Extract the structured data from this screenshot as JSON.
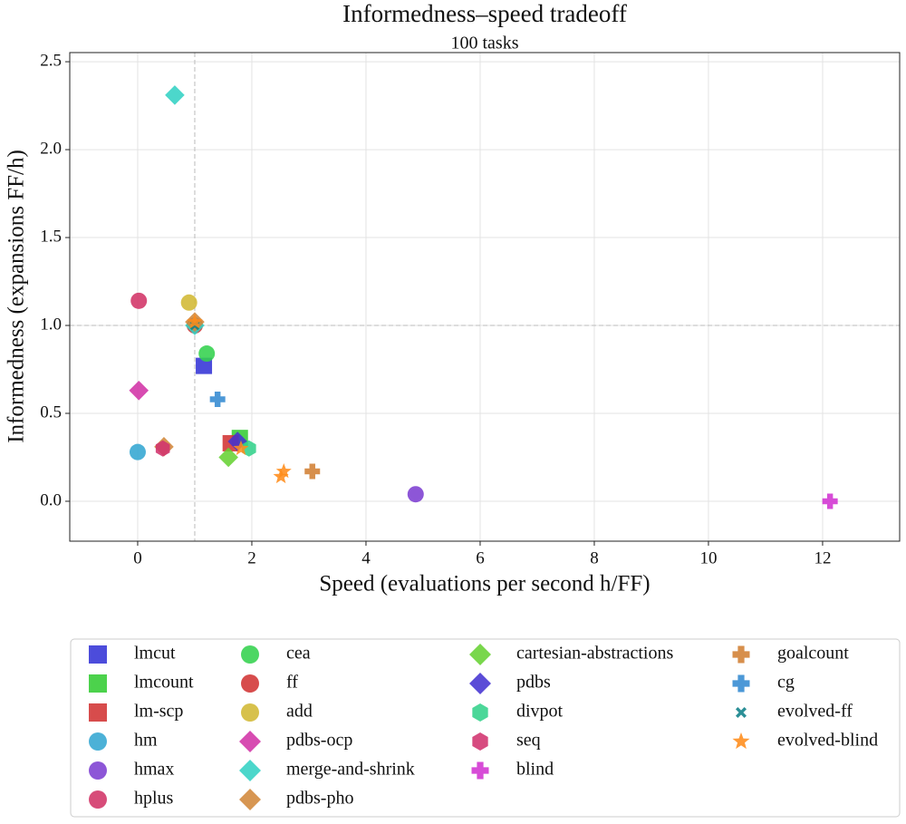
{
  "chart_data": {
    "type": "scatter",
    "title": "Informedness–speed tradeoff",
    "subtitle": "100 tasks",
    "x_label": "Speed (evaluations per second h/FF)",
    "y_label": "Informedness (expansions FF/h)",
    "xlim": [
      -1.19,
      13.35
    ],
    "ylim": [
      -0.227,
      2.552
    ],
    "xticks": [
      0,
      2,
      4,
      6,
      8,
      10,
      12
    ],
    "yticks": [
      {
        "value": 0,
        "label": "0.0"
      },
      {
        "value": 0.5,
        "label": "0.5"
      },
      {
        "value": 1,
        "label": "1.0"
      },
      {
        "value": 1.5,
        "label": "1.5"
      },
      {
        "value": 2,
        "label": "2.0"
      },
      {
        "value": 2.5,
        "label": "2.5"
      }
    ],
    "grid": true,
    "reference_lines": {
      "x": 1,
      "y": 1
    },
    "legend": "bottom",
    "series": [
      {
        "name": "lmcut",
        "color": "#3333d6",
        "marker": "square",
        "x": [
          1.16
        ],
        "y": [
          0.77
        ]
      },
      {
        "name": "lmcount",
        "color": "#33cc33",
        "marker": "square",
        "x": [
          1.79
        ],
        "y": [
          0.36
        ]
      },
      {
        "name": "lm-scp",
        "color": "#d13333",
        "marker": "square",
        "x": [
          1.63
        ],
        "y": [
          0.33
        ]
      },
      {
        "name": "hm",
        "color": "#33a6d1",
        "marker": "circle",
        "x": [
          0.0
        ],
        "y": [
          0.28
        ]
      },
      {
        "name": "hmax",
        "color": "#7d3fd1",
        "marker": "circle",
        "x": [
          4.87
        ],
        "y": [
          0.04
        ]
      },
      {
        "name": "hplus",
        "color": "#d13366",
        "marker": "circle",
        "x": [
          0.02
        ],
        "y": [
          1.14
        ]
      },
      {
        "name": "cea",
        "color": "#33d14d",
        "marker": "circle",
        "x": [
          1.21
        ],
        "y": [
          0.84
        ]
      },
      {
        "name": "ff",
        "color": "#d13333",
        "marker": "circle",
        "x": [
          1.0
        ],
        "y": [
          1.0
        ]
      },
      {
        "name": "add",
        "color": "#d1b833",
        "marker": "circle",
        "x": [
          0.9
        ],
        "y": [
          1.13
        ]
      },
      {
        "name": "pdbs-ocp",
        "color": "#d133a6",
        "marker": "diamond",
        "x": [
          0.02
        ],
        "y": [
          0.63
        ]
      },
      {
        "name": "merge-and-shrink",
        "color": "#33d1c4",
        "marker": "diamond",
        "x": [
          0.65,
          1.0
        ],
        "y": [
          2.31,
          1.0
        ]
      },
      {
        "name": "pdbs-pho",
        "color": "#d1873a",
        "marker": "diamond",
        "x": [
          0.46,
          1.0
        ],
        "y": [
          0.31,
          1.02
        ]
      },
      {
        "name": "cartesian-abstractions",
        "color": "#66d133",
        "marker": "diamond",
        "x": [
          1.59
        ],
        "y": [
          0.25
        ]
      },
      {
        "name": "pdbs",
        "color": "#4433d1",
        "marker": "diamond",
        "x": [
          1.75
        ],
        "y": [
          0.34
        ]
      },
      {
        "name": "divpot",
        "color": "#33d18b",
        "marker": "hexagon",
        "x": [
          1.95
        ],
        "y": [
          0.3
        ]
      },
      {
        "name": "seq",
        "color": "#d1336e",
        "marker": "hexagon",
        "x": [
          0.44
        ],
        "y": [
          0.3
        ]
      },
      {
        "name": "blind",
        "color": "#d133d1",
        "marker": "plus",
        "x": [
          12.13
        ],
        "y": [
          0.0
        ]
      },
      {
        "name": "goalcount",
        "color": "#d17f33",
        "marker": "plus",
        "x": [
          3.06
        ],
        "y": [
          0.17
        ]
      },
      {
        "name": "cg",
        "color": "#338ad1",
        "marker": "plus",
        "x": [
          1.4
        ],
        "y": [
          0.58
        ]
      },
      {
        "name": "evolved-ff",
        "color": "#0e8088",
        "marker": "x",
        "x": [
          1.0
        ],
        "y": [
          1.0
        ]
      },
      {
        "name": "evolved-blind",
        "color": "#ff8c1a",
        "marker": "star",
        "x": [
          1.0,
          1.81,
          2.51,
          2.56
        ],
        "y": [
          1.02,
          0.3,
          0.14,
          0.17
        ]
      }
    ]
  }
}
